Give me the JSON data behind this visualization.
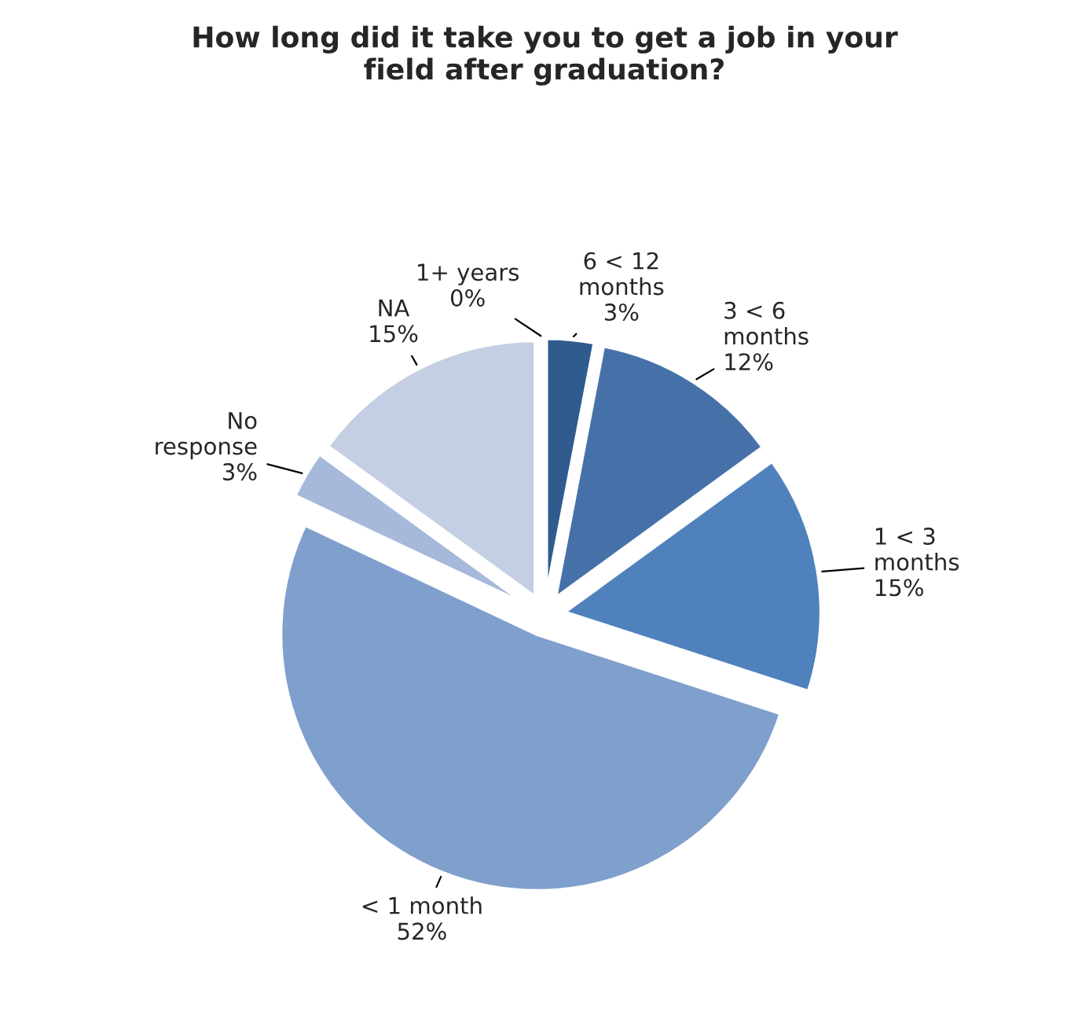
{
  "chart_data": {
    "type": "pie",
    "title": "How long did it take you to get a job in your\nfield after graduation?",
    "categories": [
      "6 < 12\nmonths",
      "3 < 6\nmonths",
      "1 < 3\nmonths",
      "< 1 month",
      "No\nresponse",
      "NA",
      "1+ years"
    ],
    "values": [
      3,
      12,
      15,
      52,
      3,
      15,
      0
    ],
    "value_labels": [
      "3%",
      "12%",
      "15%",
      "52%",
      "3%",
      "15%",
      "0%"
    ],
    "colors": [
      "#2f5b8f",
      "#4671a8",
      "#4f81bd",
      "#7f9fcc",
      "#a6b9da",
      "#c4cfe3",
      "#24466f"
    ],
    "legend": false
  }
}
